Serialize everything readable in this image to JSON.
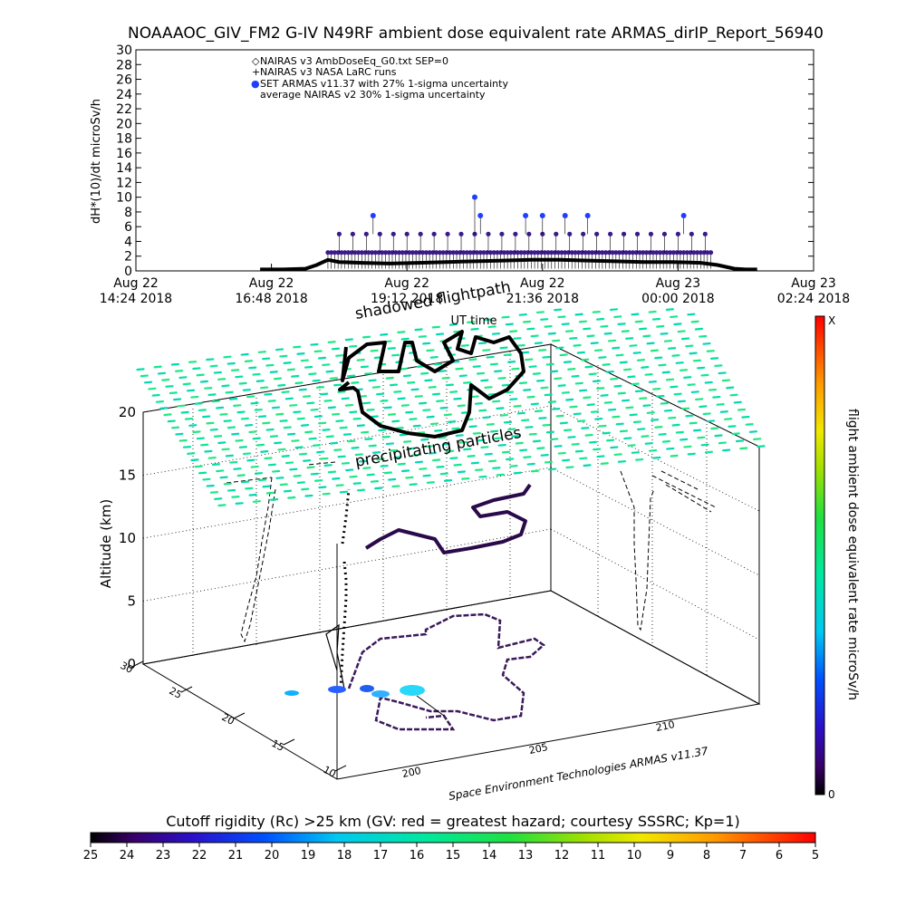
{
  "title": "NOAAAOC_GIV_FM2 G-IV    N49RF  ambient dose equivalent rate ARMAS_dirIP_Report_56940",
  "chart_data": [
    {
      "type": "scatter",
      "ylabel": "dH*(10)/dt microSv/h",
      "ylim": [
        0,
        30
      ],
      "y_ticks": [
        "0",
        "2",
        "4",
        "6",
        "8",
        "10",
        "12",
        "14",
        "16",
        "18",
        "20",
        "22",
        "24",
        "26",
        "28",
        "30"
      ],
      "x_ticks": [
        {
          "day": "Aug 22",
          "time": "14:24 2018"
        },
        {
          "day": "Aug 22",
          "time": "16:48 2018"
        },
        {
          "day": "Aug 22",
          "time": "19:12 2018"
        },
        {
          "day": "Aug 22",
          "time": "21:36 2018"
        },
        {
          "day": "Aug 23",
          "time": "00:00 2018"
        },
        {
          "day": "Aug 23",
          "time": "02:24 2018"
        }
      ],
      "x_title": "UT time",
      "legend": [
        {
          "marker": "◇",
          "label": "NAIRAS v3 AmbDoseEq_G0.txt SEP=0",
          "color": "#000000"
        },
        {
          "marker": "+",
          "label": "NAIRAS v3 NASA LaRC runs",
          "color": "#000000"
        },
        {
          "marker": "●",
          "label": "SET ARMAS v11.37 with 27% 1-sigma uncertainty",
          "color": "#1f3fff"
        },
        {
          "marker": "",
          "label": "average NAIRAS v2 30% 1-sigma uncertainty",
          "color": "#000000"
        }
      ],
      "legend_position": "top-left",
      "series": [
        {
          "name": "NAIRAS v3 AmbDoseEq_G0.txt SEP=0",
          "x_hours_since_1424": [
            2.2,
            2.6,
            3.0,
            3.2,
            3.4,
            3.6,
            4.0,
            4.5,
            5.0,
            5.5,
            6.0,
            6.5,
            7.0,
            7.5,
            8.0,
            8.5,
            9.0,
            9.5,
            10.0,
            10.3,
            10.6,
            10.8,
            11.0
          ],
          "values": [
            0.2,
            0.2,
            0.3,
            0.8,
            1.5,
            1.2,
            1.1,
            1.0,
            1.1,
            1.2,
            1.3,
            1.4,
            1.5,
            1.5,
            1.4,
            1.3,
            1.2,
            1.2,
            1.1,
            0.8,
            0.3,
            0.2,
            0.2
          ]
        },
        {
          "name": "SET ARMAS v11.37 with 27% 1-sigma uncertainty",
          "highlight_points": [
            {
              "x_hours_since_1424": 6.0,
              "value": 10
            },
            {
              "x_hours_since_1424": 4.2,
              "value": 7.5
            },
            {
              "x_hours_since_1424": 6.1,
              "value": 7.5
            },
            {
              "x_hours_since_1424": 6.9,
              "value": 7.5
            },
            {
              "x_hours_since_1424": 7.2,
              "value": 7.5
            },
            {
              "x_hours_since_1424": 7.6,
              "value": 7.5
            },
            {
              "x_hours_since_1424": 8.0,
              "value": 7.5
            },
            {
              "x_hours_since_1424": 9.7,
              "value": 7.5
            }
          ],
          "levels": [
            2.5,
            5.0
          ]
        }
      ]
    },
    {
      "type": "scatter3d",
      "zlabel": "Altitude (km)",
      "z_ticks": [
        "0",
        "5",
        "10",
        "15",
        "20"
      ],
      "lat_ticks": [
        "10",
        "15",
        "20",
        "25",
        "30"
      ],
      "lon_ticks": [
        "200",
        "205",
        "210"
      ],
      "annotations": [
        "shadowed flightpath",
        "precipitating particles",
        "Space Environment Technologies ARMAS v11.37"
      ],
      "colorbar": {
        "label": "flight ambient dose equivalent rate microSv/h",
        "min": "0",
        "max": "X"
      }
    }
  ],
  "rigidity_bar": {
    "title": "Cutoff rigidity (Rc) >25 km (GV: red = greatest hazard; courtesy SSSRC; Kp=1)",
    "ticks": [
      "25",
      "24",
      "23",
      "22",
      "21",
      "20",
      "19",
      "18",
      "17",
      "16",
      "15",
      "14",
      "13",
      "12",
      "11",
      "10",
      "9",
      "8",
      "7",
      "6",
      "5"
    ]
  }
}
